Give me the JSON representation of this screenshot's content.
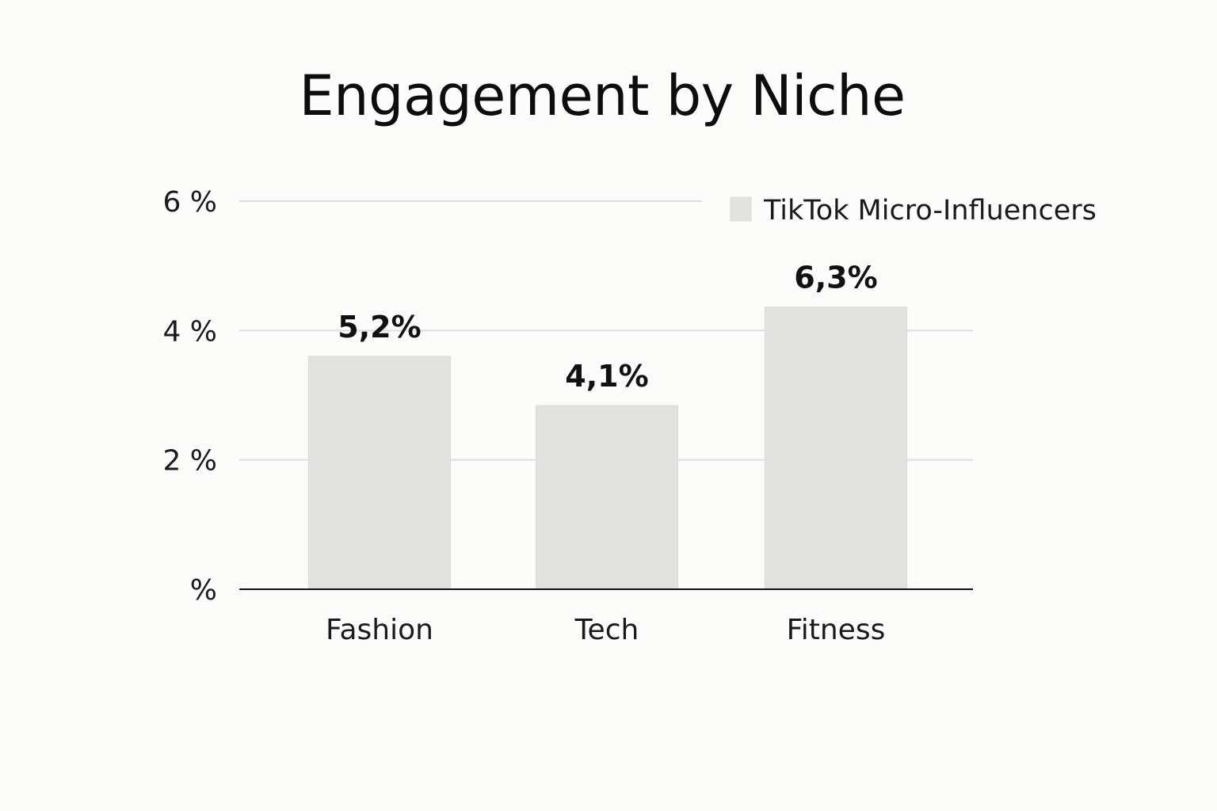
{
  "chart_data": {
    "type": "bar",
    "title": "Engagement by Niche",
    "xlabel": "",
    "ylabel": "",
    "categories": [
      "Fashion",
      "Tech",
      "Fitness"
    ],
    "series": [
      {
        "name": "TikTok Micro-Influencers",
        "values": [
          5.2,
          4.1,
          6.3
        ],
        "data_labels": [
          "5,2%",
          "4,1%",
          "6,3%"
        ]
      }
    ],
    "y_ticks": [
      {
        "value": 0,
        "label": "%"
      },
      {
        "value": 2,
        "label": "2 %"
      },
      {
        "value": 4,
        "label": "4 %"
      },
      {
        "value": 6,
        "label": "6 %"
      }
    ],
    "ylim": [
      0,
      6
    ],
    "grid": true,
    "legend_position": "top-right",
    "colors": {
      "bar": "#e2e2e0",
      "grid": "#dedede",
      "axis": "#111111",
      "background": "#fcfcfa"
    }
  }
}
